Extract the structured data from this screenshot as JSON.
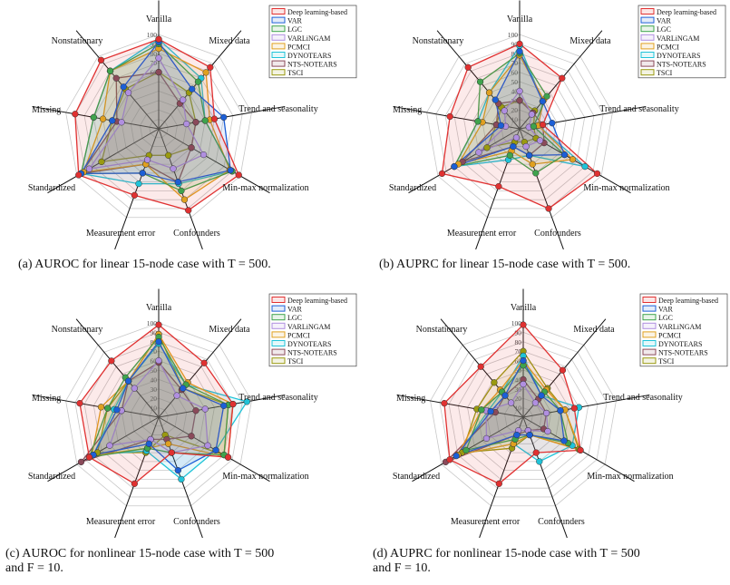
{
  "legend_entries": [
    "Deep learning-based",
    "VAR",
    "LGC",
    "VARLiNGAM",
    "PCMCI",
    "DYNOTEARS",
    "NTS-NOTEARS",
    "TSCI"
  ],
  "colors": {
    "Deep learning-based": "#e03131",
    "VAR": "#1c5fd6",
    "LGC": "#3fa34d",
    "VARLiNGAM": "#b08fe0",
    "PCMCI": "#e0a020",
    "DYNOTEARS": "#1fc3d8",
    "NTS-NOTEARS": "#8a4a5a",
    "TSCI": "#9a9a10"
  },
  "axes": [
    "Vanilla",
    "Mixed data",
    "Trend and seasonality",
    "Min-max normalization",
    "Confounders",
    "Measurement error",
    "Standardized",
    "Missing",
    "Nonstationary"
  ],
  "captions": [
    {
      "line1": "(a) AUROC for linear 15-node case with T = 500.",
      "line2": ""
    },
    {
      "line1": "(b) AUPRC for linear 15-node case with T = 500.",
      "line2": ""
    },
    {
      "line1": "(c) AUROC for nonlinear 15-node case with T = 500",
      "line2": "and F = 10."
    },
    {
      "line1": "(d) AUPRC for nonlinear 15-node case with T = 500",
      "line2": "and F = 10."
    }
  ],
  "chart_data": [
    {
      "type": "radar",
      "title": "(a) AUROC for linear 15-node case with T = 500.",
      "axes": [
        "Vanilla",
        "Mixed data",
        "Trend and seasonality",
        "Min-max normalization",
        "Confounders",
        "Measurement error",
        "Standardized",
        "Missing",
        "Nonstationary"
      ],
      "rmin": 0,
      "rmax": 100,
      "tick_labels": [
        "100",
        "90",
        "80",
        "70",
        "60"
      ],
      "series": [
        {
          "name": "Deep learning-based",
          "values": [
            95,
            85,
            60,
            98,
            92,
            75,
            98,
            90,
            95
          ]
        },
        {
          "name": "VAR",
          "values": [
            92,
            55,
            70,
            88,
            60,
            50,
            95,
            50,
            58
          ]
        },
        {
          "name": "LGC",
          "values": [
            90,
            65,
            50,
            90,
            70,
            50,
            95,
            70,
            80
          ]
        },
        {
          "name": "VARLiNGAM",
          "values": [
            75,
            40,
            30,
            55,
            45,
            35,
            85,
            40,
            50
          ]
        },
        {
          "name": "PCMCI",
          "values": [
            85,
            78,
            55,
            87,
            80,
            40,
            92,
            60,
            80
          ]
        },
        {
          "name": "DYNOTEARS",
          "values": [
            95,
            70,
            50,
            90,
            62,
            62,
            95,
            70,
            80
          ]
        },
        {
          "name": "NTS-NOTEARS",
          "values": [
            60,
            35,
            40,
            40,
            60,
            40,
            95,
            45,
            70
          ]
        },
        {
          "name": "TSCI",
          "values": [
            60,
            50,
            40,
            40,
            30,
            30,
            70,
            50,
            55
          ]
        }
      ]
    },
    {
      "type": "radar",
      "title": "(b) AUPRC for linear 15-node case with T = 500.",
      "axes": [
        "Vanilla",
        "Mixed data",
        "Trend and seasonality",
        "Min-max normalization",
        "Confounders",
        "Measurement error",
        "Standardized",
        "Missing",
        "Nonstationary"
      ],
      "rmin": 0,
      "rmax": 100,
      "tick_labels": [
        "100",
        "90",
        "80",
        "70",
        "60",
        "50",
        "40",
        "30",
        "20",
        "10"
      ],
      "series": [
        {
          "name": "Deep learning-based",
          "values": [
            90,
            70,
            25,
            95,
            90,
            65,
            95,
            75,
            85
          ]
        },
        {
          "name": "VAR",
          "values": [
            82,
            38,
            35,
            55,
            30,
            20,
            80,
            20,
            40
          ]
        },
        {
          "name": "LGC",
          "values": [
            80,
            45,
            15,
            55,
            50,
            30,
            80,
            45,
            65
          ]
        },
        {
          "name": "VARLiNGAM",
          "values": [
            40,
            20,
            10,
            25,
            20,
            10,
            50,
            15,
            25
          ]
        },
        {
          "name": "PCMCI",
          "values": [
            78,
            40,
            20,
            65,
            40,
            25,
            75,
            40,
            50
          ]
        },
        {
          "name": "DYNOTEARS",
          "values": [
            88,
            38,
            20,
            80,
            30,
            35,
            80,
            45,
            50
          ]
        },
        {
          "name": "NTS-NOTEARS",
          "values": [
            30,
            22,
            25,
            30,
            30,
            20,
            70,
            25,
            35
          ]
        },
        {
          "name": "TSCI",
          "values": [
            30,
            25,
            15,
            20,
            15,
            15,
            40,
            25,
            30
          ]
        }
      ]
    },
    {
      "type": "radar",
      "title": "(c) AUROC for nonlinear 15-node case with T = 500 and F = 10.",
      "axes": [
        "Vanilla",
        "Mixed data",
        "Trend and seasonality",
        "Min-max normalization",
        "Confounders",
        "Measurement error",
        "Standardized",
        "Missing",
        "Nonstationary"
      ],
      "rmin": 0,
      "rmax": 100,
      "tick_labels": [
        "100",
        "90",
        "80",
        "70",
        "60",
        "50",
        "40",
        "30",
        "20",
        "10"
      ],
      "series": [
        {
          "name": "Deep learning-based",
          "values": [
            98,
            75,
            80,
            85,
            40,
            75,
            85,
            85,
            78
          ]
        },
        {
          "name": "VAR",
          "values": [
            80,
            40,
            70,
            70,
            60,
            30,
            80,
            45,
            50
          ]
        },
        {
          "name": "LGC",
          "values": [
            85,
            45,
            75,
            80,
            40,
            35,
            85,
            55,
            55
          ]
        },
        {
          "name": "VARLiNGAM",
          "values": [
            60,
            30,
            50,
            60,
            40,
            25,
            60,
            40,
            40
          ]
        },
        {
          "name": "PCMCI",
          "values": [
            88,
            48,
            80,
            85,
            30,
            35,
            82,
            62,
            50
          ]
        },
        {
          "name": "DYNOTEARS",
          "values": [
            78,
            45,
            95,
            70,
            70,
            38,
            80,
            48,
            50
          ]
        },
        {
          "name": "NTS-NOTEARS",
          "values": [
            58,
            38,
            40,
            40,
            25,
            25,
            95,
            40,
            50
          ]
        },
        {
          "name": "TSCI",
          "values": [
            88,
            40,
            75,
            80,
            20,
            40,
            75,
            55,
            50
          ]
        }
      ]
    },
    {
      "type": "radar",
      "title": "(d) AUPRC for nonlinear 15-node case with T = 500 and F = 10.",
      "axes": [
        "Vanilla",
        "Mixed data",
        "Trend and seasonality",
        "Min-max normalization",
        "Confounders",
        "Measurement error",
        "Standardized",
        "Missing",
        "Nonstationary"
      ],
      "rmin": 0,
      "rmax": 100,
      "tick_labels": [
        "100",
        "90",
        "80",
        "70",
        "60",
        "50",
        "40",
        "30",
        "20",
        "10"
      ],
      "series": [
        {
          "name": "Deep learning-based",
          "values": [
            98,
            65,
            55,
            70,
            40,
            75,
            90,
            85,
            70
          ]
        },
        {
          "name": "VAR",
          "values": [
            60,
            30,
            40,
            50,
            20,
            20,
            82,
            35,
            30
          ]
        },
        {
          "name": "LGC",
          "values": [
            55,
            35,
            40,
            55,
            20,
            25,
            70,
            45,
            35
          ]
        },
        {
          "name": "VARLiNGAM",
          "values": [
            35,
            20,
            25,
            30,
            15,
            15,
            45,
            40,
            20
          ]
        },
        {
          "name": "PCMCI",
          "values": [
            60,
            38,
            45,
            70,
            20,
            30,
            80,
            45,
            38
          ]
        },
        {
          "name": "DYNOTEARS",
          "values": [
            65,
            30,
            60,
            60,
            50,
            30,
            80,
            38,
            35
          ]
        },
        {
          "name": "NTS-NOTEARS",
          "values": [
            40,
            25,
            25,
            25,
            15,
            20,
            95,
            30,
            30
          ]
        },
        {
          "name": "TSCI",
          "values": [
            70,
            40,
            45,
            68,
            20,
            35,
            75,
            50,
            48
          ]
        }
      ]
    }
  ]
}
